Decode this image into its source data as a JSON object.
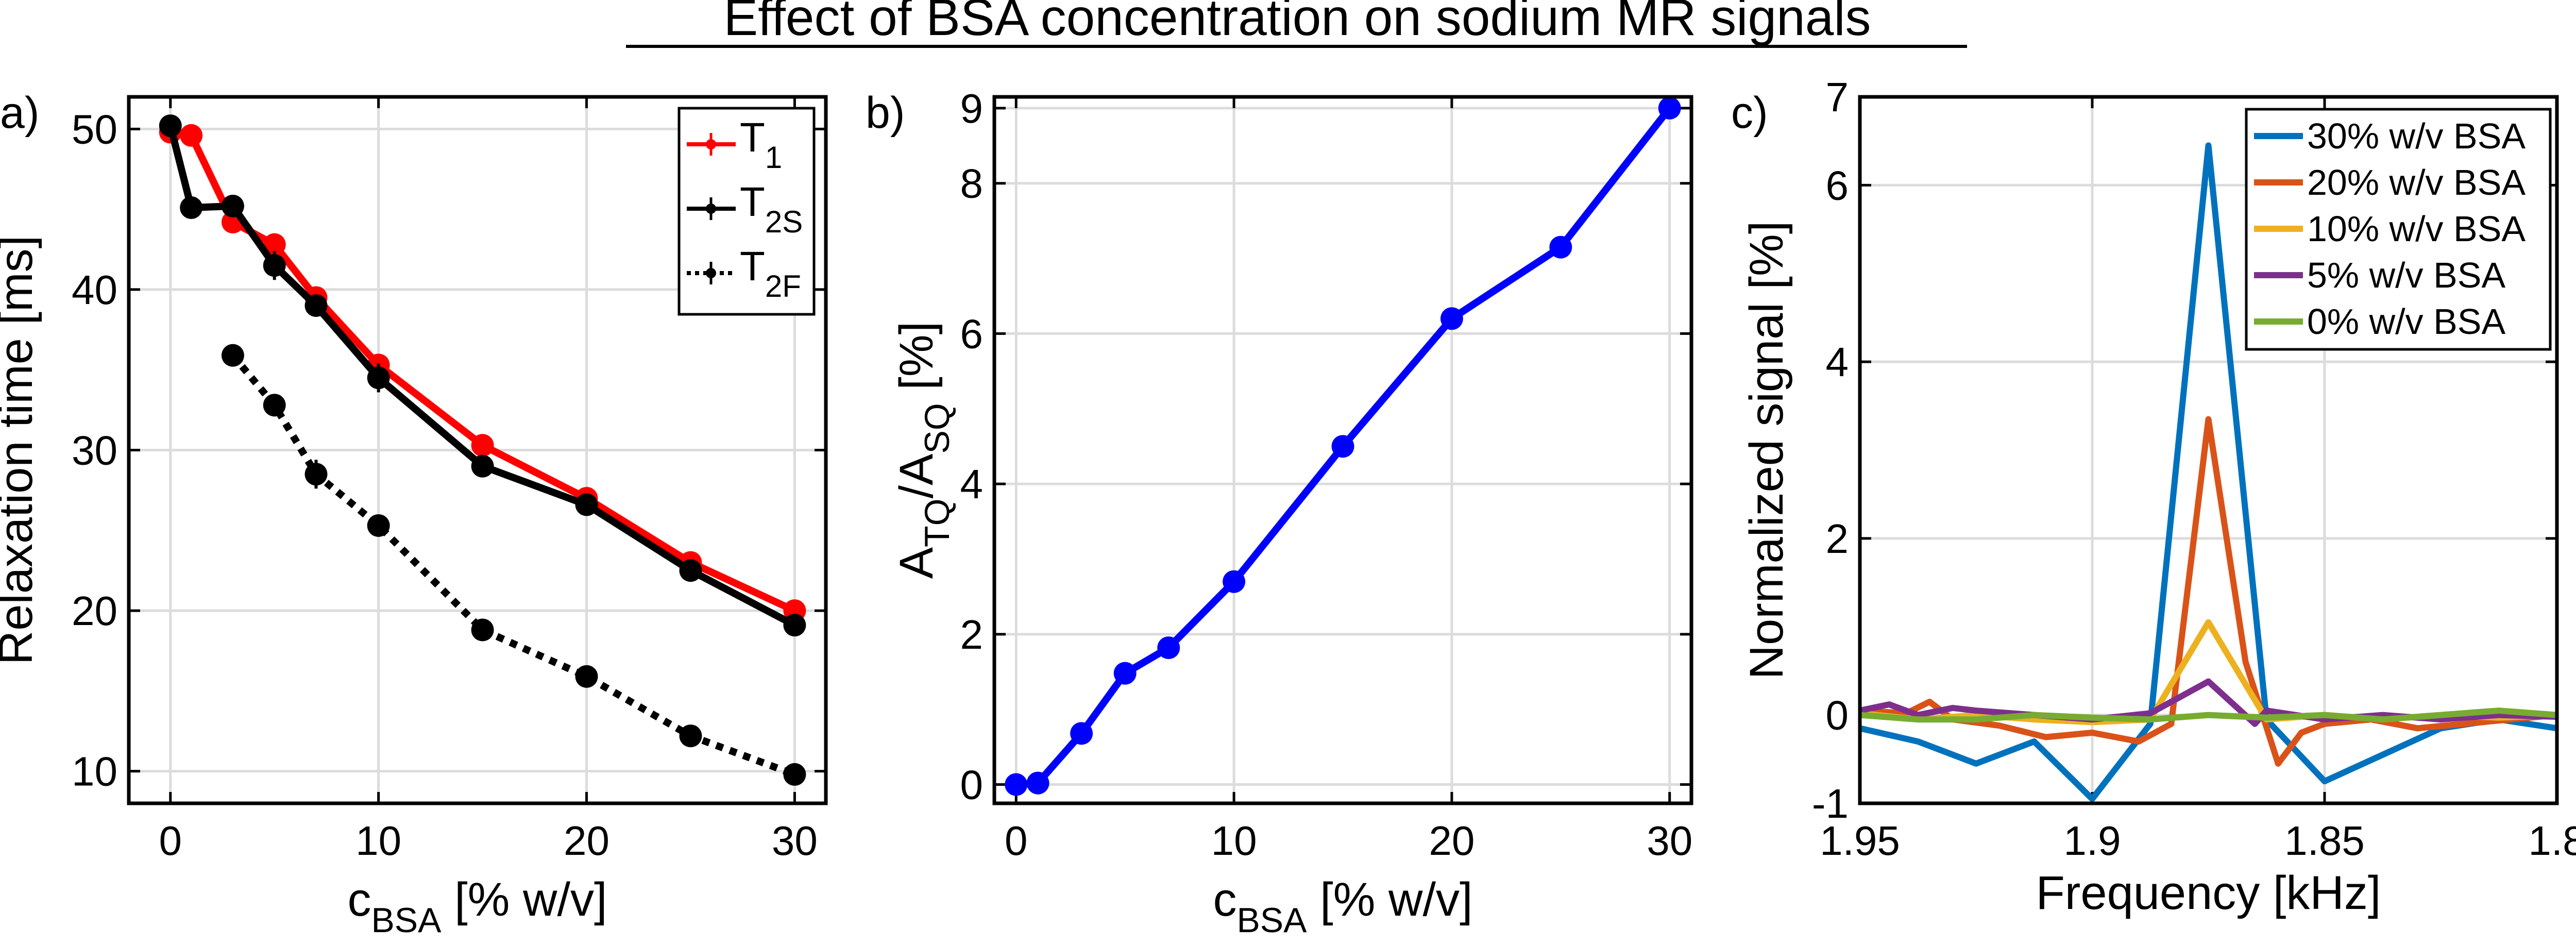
{
  "figure_title": "Effect of BSA concentration on sodium MR signals",
  "chart_data": [
    {
      "panel": "a)",
      "type": "line",
      "xlabel_main": "c",
      "xlabel_sub": "BSA",
      "xlabel_rest": " [% w/v]",
      "ylabel": "Relaxation time [ms]",
      "xlim": [
        -2,
        31.5
      ],
      "ylim": [
        8,
        52
      ],
      "xticks": [
        0,
        10,
        20,
        30
      ],
      "yticks": [
        10,
        20,
        30,
        40,
        50
      ],
      "grid": true,
      "legend_position": "top-right",
      "series": [
        {
          "name": "T",
          "sub": "1",
          "color": "#ff0000",
          "style": "solid",
          "marker": "circle",
          "x": [
            0,
            1,
            3,
            5,
            7,
            10,
            15,
            20,
            25,
            30
          ],
          "y": [
            49.8,
            49.6,
            44.2,
            42.8,
            39.5,
            35.3,
            30.3,
            27.0,
            23.0,
            20.0
          ],
          "err": [
            0,
            0,
            0,
            0,
            0,
            0,
            0,
            0,
            0,
            0
          ]
        },
        {
          "name": "T",
          "sub": "2S",
          "color": "#000000",
          "style": "solid",
          "marker": "circle",
          "x": [
            0,
            1,
            3,
            5,
            7,
            10,
            15,
            20,
            25,
            30
          ],
          "y": [
            50.2,
            45.1,
            45.2,
            41.5,
            39.0,
            34.5,
            29.0,
            26.6,
            22.5,
            19.1
          ],
          "err": [
            0.4,
            0.3,
            0.6,
            0.9,
            0.6,
            0.9,
            0.3,
            0.3,
            0.3,
            0.3
          ]
        },
        {
          "name": "T",
          "sub": "2F",
          "color": "#000000",
          "style": "dotted",
          "marker": "circle",
          "x": [
            3,
            5,
            7,
            10,
            15,
            20,
            25,
            30
          ],
          "y": [
            35.9,
            32.8,
            28.5,
            25.3,
            18.8,
            15.9,
            12.2,
            9.8
          ],
          "err": [
            0.3,
            0.7,
            0.9,
            0.4,
            0.3,
            0.3,
            0.3,
            0.3
          ]
        }
      ]
    },
    {
      "panel": "b)",
      "type": "line",
      "xlabel_main": "c",
      "xlabel_sub": "BSA",
      "xlabel_rest": " [% w/v]",
      "ylabel_parts": [
        "A",
        "TQ",
        "/A",
        "SQ",
        " [%]"
      ],
      "xlim": [
        -1,
        31
      ],
      "ylim": [
        -0.25,
        9.15
      ],
      "xticks": [
        0,
        10,
        20,
        30
      ],
      "yticks": [
        0,
        2,
        4,
        6,
        8,
        9
      ],
      "grid": true,
      "series": [
        {
          "name": "ATQ/ASQ",
          "color": "#0000ff",
          "style": "solid",
          "marker": "circle",
          "x": [
            0,
            1,
            3,
            5,
            7,
            10,
            15,
            20,
            25,
            30
          ],
          "y": [
            0.0,
            0.02,
            0.68,
            1.48,
            1.82,
            2.7,
            4.5,
            6.2,
            7.15,
            9.0
          ]
        }
      ]
    },
    {
      "panel": "c)",
      "type": "line",
      "xlabel": "Frequency [kHz]",
      "ylabel": "Normalized signal [%]",
      "xlim": [
        1.95,
        1.8
      ],
      "ylim": [
        -1,
        7
      ],
      "xticks": [
        1.95,
        1.9,
        1.85,
        1.8
      ],
      "xtick_labels": [
        "1.95",
        "1.9",
        "1.85",
        "1.8"
      ],
      "yticks": [
        -1,
        0,
        2,
        4,
        6,
        7
      ],
      "grid": true,
      "legend_position": "top-right",
      "series": [
        {
          "name": "30% w/v BSA",
          "color": "#0072bd",
          "x": [
            1.95,
            1.9375,
            1.925,
            1.9125,
            1.9,
            1.8875,
            1.875,
            1.8625,
            1.85,
            1.8375,
            1.825,
            1.8125,
            1.8
          ],
          "y": [
            -0.15,
            -0.3,
            -0.55,
            -0.3,
            -0.95,
            -0.1,
            6.45,
            -0.05,
            -0.75,
            -0.45,
            -0.15,
            -0.05,
            -0.15
          ]
        },
        {
          "name": "20% w/v BSA",
          "color": "#d95319",
          "x": [
            1.95,
            1.94,
            1.935,
            1.93,
            1.92,
            1.91,
            1.9,
            1.89,
            1.883,
            1.875,
            1.867,
            1.86,
            1.855,
            1.85,
            1.84,
            1.83,
            1.82,
            1.81,
            1.8
          ],
          "y": [
            0.05,
            0.02,
            0.15,
            -0.05,
            -0.12,
            -0.25,
            -0.2,
            -0.3,
            -0.1,
            3.35,
            0.6,
            -0.55,
            -0.2,
            -0.1,
            -0.05,
            -0.15,
            -0.1,
            -0.05,
            0.0
          ]
        },
        {
          "name": "10% w/v BSA",
          "color": "#edb120",
          "x": [
            1.95,
            1.9375,
            1.925,
            1.9125,
            1.9,
            1.8875,
            1.875,
            1.8625,
            1.85,
            1.8375,
            1.825,
            1.8125,
            1.8
          ],
          "y": [
            0.02,
            -0.05,
            0.0,
            -0.05,
            -0.08,
            -0.05,
            1.05,
            -0.05,
            0.0,
            -0.05,
            0.0,
            -0.03,
            0.0
          ]
        },
        {
          "name": "5% w/v BSA",
          "color": "#7e2f8e",
          "x": [
            1.95,
            1.9437,
            1.9375,
            1.93,
            1.925,
            1.9125,
            1.9,
            1.8875,
            1.875,
            1.865,
            1.8625,
            1.85,
            1.8375,
            1.825,
            1.8125,
            1.8
          ],
          "y": [
            0.05,
            0.12,
            0.0,
            0.08,
            0.05,
            0.0,
            -0.05,
            0.02,
            0.38,
            -0.1,
            0.05,
            -0.05,
            0.0,
            -0.05,
            0.0,
            -0.02
          ]
        },
        {
          "name": "0% w/v BSA",
          "color": "#77ac30",
          "x": [
            1.95,
            1.9375,
            1.925,
            1.9125,
            1.9,
            1.8875,
            1.875,
            1.8625,
            1.85,
            1.8375,
            1.825,
            1.8125,
            1.8
          ],
          "y": [
            0.0,
            -0.05,
            -0.05,
            0.0,
            -0.03,
            -0.05,
            0.0,
            -0.03,
            0.0,
            -0.05,
            0.0,
            0.05,
            0.0
          ]
        }
      ]
    }
  ]
}
